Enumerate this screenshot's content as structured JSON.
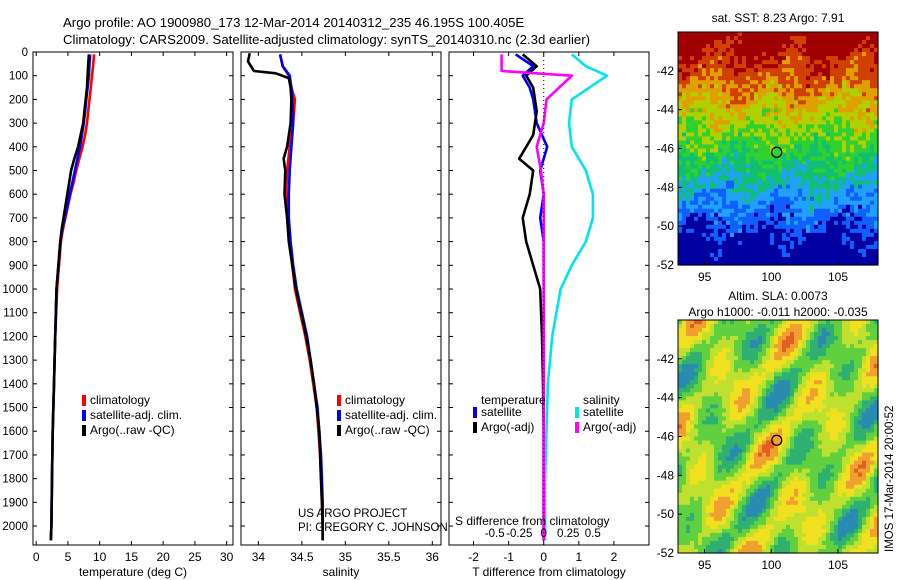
{
  "header": {
    "line1": "Argo profile: AO 1900980_173 12-Mar-2014 20140312_235 46.195S 100.405E",
    "line2": "Climatology: CARS2009. Satellite-adjusted climatology: synTS_20140310.nc (2.3d earlier)"
  },
  "footer": {
    "project": "US ARGO PROJECT",
    "pi": "PI: GREGORY C. JOHNSON",
    "imos": "IMOS 17-Mar-2014 20:00:52"
  },
  "colors": {
    "climatology": "#ff0000",
    "satellite": "#0000ff",
    "argo": "#000000",
    "satellite_sal": "#00e5ee",
    "argo_sal": "#ff00ff"
  },
  "chart_data": [
    {
      "type": "line",
      "xlabel": "temperature (deg C)",
      "ylabel": "",
      "xlim": [
        -0.5,
        31
      ],
      "ylim": [
        2080,
        0
      ],
      "xticks": [
        "0",
        "5",
        "10",
        "15",
        "20",
        "25",
        "30"
      ],
      "yticks": [
        "0",
        "100",
        "200",
        "300",
        "400",
        "500",
        "600",
        "700",
        "800",
        "900",
        "1000",
        "1100",
        "1200",
        "1300",
        "1400",
        "1500",
        "1600",
        "1700",
        "1800",
        "1900",
        "2000"
      ],
      "legend": [
        "climatology",
        "satellite-adj. clim.",
        "Argo(..raw -QC)"
      ],
      "legend_position": "bottom-right",
      "series": [
        {
          "name": "climatology",
          "color": "#ff0000",
          "points": [
            [
              9.1,
              10
            ],
            [
              9.0,
              50
            ],
            [
              8.8,
              100
            ],
            [
              8.6,
              150
            ],
            [
              8.4,
              200
            ],
            [
              8.2,
              250
            ],
            [
              8.0,
              300
            ],
            [
              7.7,
              350
            ],
            [
              7.3,
              400
            ],
            [
              6.8,
              450
            ],
            [
              6.3,
              500
            ],
            [
              5.9,
              550
            ],
            [
              5.4,
              600
            ],
            [
              5.0,
              650
            ],
            [
              4.6,
              700
            ],
            [
              4.2,
              750
            ],
            [
              3.9,
              800
            ],
            [
              3.6,
              900
            ],
            [
              3.3,
              1000
            ],
            [
              3.0,
              1200
            ],
            [
              2.8,
              1400
            ],
            [
              2.6,
              1600
            ],
            [
              2.5,
              1800
            ],
            [
              2.4,
              2000
            ],
            [
              2.3,
              2060
            ]
          ]
        },
        {
          "name": "satellite-adj. clim.",
          "color": "#0000ff",
          "points": [
            [
              8.5,
              10
            ],
            [
              8.4,
              50
            ],
            [
              8.3,
              100
            ],
            [
              8.1,
              150
            ],
            [
              7.9,
              200
            ],
            [
              7.7,
              250
            ],
            [
              7.5,
              300
            ],
            [
              7.2,
              350
            ],
            [
              6.9,
              400
            ],
            [
              6.5,
              450
            ],
            [
              6.1,
              500
            ],
            [
              5.7,
              550
            ],
            [
              5.3,
              600
            ],
            [
              4.9,
              650
            ],
            [
              4.5,
              700
            ],
            [
              4.1,
              750
            ],
            [
              3.8,
              800
            ],
            [
              3.5,
              900
            ],
            [
              3.2,
              1000
            ],
            [
              3.0,
              1200
            ],
            [
              2.8,
              1400
            ],
            [
              2.6,
              1600
            ],
            [
              2.5,
              1800
            ],
            [
              2.4,
              2000
            ],
            [
              2.3,
              2060
            ]
          ]
        },
        {
          "name": "Argo(..raw -QC)",
          "color": "#000000",
          "points": [
            [
              8.3,
              10
            ],
            [
              8.2,
              50
            ],
            [
              8.1,
              100
            ],
            [
              8.0,
              150
            ],
            [
              7.8,
              200
            ],
            [
              7.6,
              250
            ],
            [
              7.4,
              300
            ],
            [
              7.0,
              350
            ],
            [
              6.6,
              400
            ],
            [
              6.0,
              450
            ],
            [
              5.5,
              500
            ],
            [
              5.2,
              550
            ],
            [
              4.9,
              600
            ],
            [
              4.6,
              650
            ],
            [
              4.3,
              700
            ],
            [
              4.0,
              750
            ],
            [
              3.8,
              800
            ],
            [
              3.5,
              900
            ],
            [
              3.2,
              1000
            ],
            [
              3.0,
              1200
            ],
            [
              2.8,
              1400
            ],
            [
              2.6,
              1600
            ],
            [
              2.5,
              1800
            ],
            [
              2.4,
              2000
            ],
            [
              2.3,
              2060
            ]
          ]
        }
      ]
    },
    {
      "type": "line",
      "xlabel": "salinity",
      "ylabel": "",
      "xlim": [
        33.8,
        36.1
      ],
      "ylim": [
        2080,
        0
      ],
      "xticks": [
        "34",
        "34.5",
        "35",
        "35.5",
        "36"
      ],
      "legend": [
        "climatology",
        "satellite-adj. clim.",
        "Argo(..raw -QC)"
      ],
      "legend_position": "bottom-right",
      "series": [
        {
          "name": "climatology",
          "color": "#ff0000",
          "points": [
            [
              34.25,
              10
            ],
            [
              34.28,
              60
            ],
            [
              34.35,
              100
            ],
            [
              34.38,
              150
            ],
            [
              34.42,
              200
            ],
            [
              34.4,
              300
            ],
            [
              34.36,
              400
            ],
            [
              34.33,
              500
            ],
            [
              34.32,
              600
            ],
            [
              34.33,
              700
            ],
            [
              34.36,
              800
            ],
            [
              34.39,
              900
            ],
            [
              34.42,
              1000
            ],
            [
              34.48,
              1100
            ],
            [
              34.54,
              1200
            ],
            [
              34.59,
              1300
            ],
            [
              34.63,
              1400
            ],
            [
              34.67,
              1500
            ],
            [
              34.69,
              1600
            ],
            [
              34.71,
              1700
            ],
            [
              34.72,
              1800
            ],
            [
              34.73,
              1900
            ],
            [
              34.74,
              2000
            ],
            [
              34.74,
              2060
            ]
          ]
        },
        {
          "name": "satellite-adj. clim.",
          "color": "#0000ff",
          "points": [
            [
              34.25,
              10
            ],
            [
              34.28,
              60
            ],
            [
              34.36,
              100
            ],
            [
              34.38,
              150
            ],
            [
              34.39,
              200
            ],
            [
              34.4,
              300
            ],
            [
              34.38,
              400
            ],
            [
              34.36,
              500
            ],
            [
              34.35,
              600
            ],
            [
              34.35,
              700
            ],
            [
              34.37,
              800
            ],
            [
              34.4,
              900
            ],
            [
              34.44,
              1000
            ],
            [
              34.5,
              1100
            ],
            [
              34.56,
              1200
            ],
            [
              34.6,
              1300
            ],
            [
              34.64,
              1400
            ],
            [
              34.68,
              1500
            ],
            [
              34.7,
              1600
            ],
            [
              34.72,
              1700
            ],
            [
              34.73,
              1800
            ],
            [
              34.74,
              1900
            ],
            [
              34.74,
              2000
            ],
            [
              34.74,
              2060
            ]
          ]
        },
        {
          "name": "Argo(..raw -QC)",
          "color": "#000000",
          "points": [
            [
              33.9,
              5
            ],
            [
              33.88,
              40
            ],
            [
              33.95,
              80
            ],
            [
              34.2,
              90
            ],
            [
              34.35,
              110
            ],
            [
              34.37,
              150
            ],
            [
              34.38,
              200
            ],
            [
              34.37,
              300
            ],
            [
              34.33,
              400
            ],
            [
              34.29,
              450
            ],
            [
              34.31,
              500
            ],
            [
              34.3,
              600
            ],
            [
              34.33,
              700
            ],
            [
              34.35,
              800
            ],
            [
              34.39,
              900
            ],
            [
              34.43,
              1000
            ],
            [
              34.49,
              1100
            ],
            [
              34.55,
              1200
            ],
            [
              34.6,
              1300
            ],
            [
              34.64,
              1400
            ],
            [
              34.67,
              1500
            ],
            [
              34.7,
              1600
            ],
            [
              34.71,
              1700
            ],
            [
              34.72,
              1800
            ],
            [
              34.73,
              1900
            ],
            [
              34.74,
              2000
            ],
            [
              34.74,
              2060
            ]
          ]
        }
      ]
    },
    {
      "type": "line",
      "xlabel": "T difference from climatology",
      "xlabel_top": "S difference from climatology",
      "ylabel": "",
      "xlim": [
        -2.7,
        3.0
      ],
      "ylim": [
        2080,
        0
      ],
      "xticks": [
        "-2",
        "-1",
        "0",
        "1",
        "2"
      ],
      "xticks_top": [
        "-0.5",
        "-0.25",
        "0",
        "0.25",
        "0.5"
      ],
      "legend_temperature": {
        "title": "temperature",
        "items": [
          "satellite",
          "Argo(-adj)"
        ]
      },
      "legend_salinity": {
        "title": "salinity",
        "items": [
          "satellite",
          "Argo(-adj)"
        ]
      },
      "legend_position": "bottom",
      "series": [
        {
          "name": "temperature satellite",
          "color": "#0000ff",
          "points": [
            [
              -0.8,
              10
            ],
            [
              -0.3,
              60
            ],
            [
              -0.6,
              100
            ],
            [
              -0.4,
              150
            ],
            [
              -0.3,
              200
            ],
            [
              -0.2,
              300
            ],
            [
              0.1,
              400
            ],
            [
              -0.1,
              500
            ],
            [
              0,
              600
            ],
            [
              -0.1,
              700
            ],
            [
              0,
              800
            ],
            [
              0,
              1000
            ],
            [
              0,
              1200
            ],
            [
              0,
              1400
            ],
            [
              0,
              1600
            ],
            [
              0,
              1800
            ],
            [
              0,
              2000
            ],
            [
              0,
              2060
            ]
          ]
        },
        {
          "name": "temperature Argo(-adj)",
          "color": "#000000",
          "points": [
            [
              -0.6,
              10
            ],
            [
              -0.2,
              60
            ],
            [
              -0.5,
              100
            ],
            [
              -0.3,
              150
            ],
            [
              -0.2,
              250
            ],
            [
              -0.3,
              350
            ],
            [
              -0.7,
              450
            ],
            [
              -0.3,
              500
            ],
            [
              -0.4,
              600
            ],
            [
              -0.6,
              700
            ],
            [
              -0.5,
              800
            ],
            [
              -0.3,
              900
            ],
            [
              -0.1,
              1000
            ],
            [
              -0.05,
              1200
            ],
            [
              -0.02,
              1400
            ],
            [
              0,
              1600
            ],
            [
              0,
              2000
            ],
            [
              0,
              2060
            ]
          ]
        },
        {
          "name": "salinity satellite",
          "color": "#00e5ee",
          "points": [
            [
              0.2,
              10
            ],
            [
              0.3,
              60
            ],
            [
              0.45,
              100
            ],
            [
              0.2,
              200
            ],
            [
              0.18,
              300
            ],
            [
              0.2,
              400
            ],
            [
              0.3,
              500
            ],
            [
              0.35,
              600
            ],
            [
              0.35,
              700
            ],
            [
              0.3,
              800
            ],
            [
              0.2,
              900
            ],
            [
              0.12,
              1000
            ],
            [
              0.06,
              1200
            ],
            [
              0.03,
              1400
            ],
            [
              0.02,
              1600
            ],
            [
              0.01,
              1800
            ],
            [
              0.01,
              2000
            ],
            [
              0.01,
              2060
            ]
          ]
        },
        {
          "name": "salinity Argo(-adj)",
          "color": "#ff00ff",
          "points": [
            [
              -0.3,
              10
            ],
            [
              -0.3,
              80
            ],
            [
              0.2,
              100
            ],
            [
              0.02,
              200
            ],
            [
              0,
              300
            ],
            [
              -0.05,
              400
            ],
            [
              -0.02,
              500
            ],
            [
              0,
              600
            ],
            [
              0,
              700
            ],
            [
              0,
              800
            ],
            [
              0,
              1000
            ],
            [
              0,
              1200
            ],
            [
              0,
              1400
            ],
            [
              0,
              1600
            ],
            [
              0,
              2000
            ],
            [
              0,
              2060
            ]
          ]
        }
      ]
    },
    {
      "type": "heatmap",
      "title": "sat. SST: 8.23 Argo: 7.91",
      "xlim": [
        93,
        108
      ],
      "ylim": [
        -52,
        -40
      ],
      "xticks": [
        "95",
        "100",
        "105"
      ],
      "yticks": [
        "-42",
        "-44",
        "-46",
        "-48",
        "-50",
        "-52"
      ],
      "marker": {
        "lon": 100.405,
        "lat": -46.195
      },
      "colormap": [
        "#0000a0",
        "#1060ff",
        "#20a0ff",
        "#10c070",
        "#30d030",
        "#b0d000",
        "#e0a000",
        "#d04000",
        "#a00000"
      ]
    },
    {
      "type": "heatmap",
      "title": "Altim. SLA: 0.0073",
      "subtitle": "Argo h1000: -0.011 h2000: -0.035",
      "xlim": [
        93,
        108
      ],
      "ylim": [
        -52,
        -40
      ],
      "xticks": [
        "95",
        "100",
        "105"
      ],
      "yticks": [
        "-42",
        "-44",
        "-46",
        "-48",
        "-50",
        "-52"
      ],
      "marker": {
        "lon": 100.405,
        "lat": -46.195
      },
      "colormap": [
        "#2a8ab0",
        "#30b070",
        "#60d040",
        "#c0e030",
        "#f0e020",
        "#f0a030",
        "#e06020"
      ]
    }
  ]
}
